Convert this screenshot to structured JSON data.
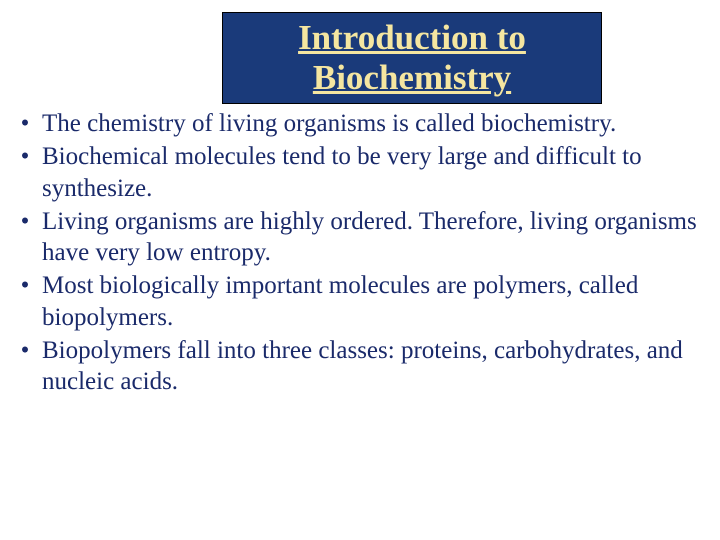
{
  "title": {
    "line1": "Introduction to",
    "line2": "Biochemistry",
    "background_color": "#1a3a7a",
    "text_color": "#f5e6a0",
    "fontsize": 35,
    "underline": true
  },
  "bullets": {
    "marker": "•",
    "text_color": "#1a2a6a",
    "fontsize": 25,
    "items": [
      "The chemistry of living organisms is called biochemistry.",
      "Biochemical molecules tend to be very large and difficult to synthesize.",
      "Living organisms are highly ordered.  Therefore, living organisms have very low entropy.",
      "Most biologically important molecules are polymers, called biopolymers.",
      "Biopolymers fall into three classes: proteins, carbohydrates, and nucleic acids."
    ]
  },
  "background_color": "#ffffff"
}
